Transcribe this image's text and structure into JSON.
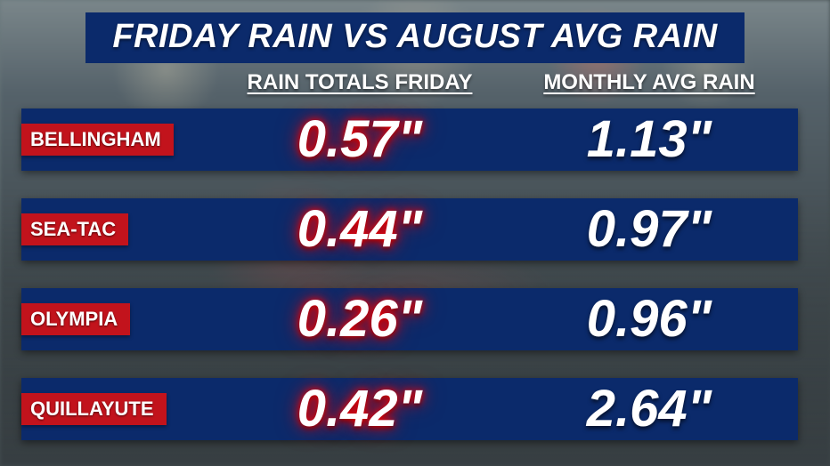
{
  "title": "FRIDAY RAIN VS AUGUST AVG RAIN",
  "title_fontsize": 38,
  "title_bg": "#0b2a6b",
  "title_color": "#ffffff",
  "columns": {
    "friday": "RAIN TOTALS FRIDAY",
    "monthly": "MONTHLY AVG RAIN"
  },
  "column_header_fontsize": 24,
  "row_bar_color": "#0b2a6b",
  "city_tag_bg": "#c2131c",
  "city_tag_color": "#ffffff",
  "city_tag_fontsize": 22,
  "friday_value_color": "#ffffff",
  "friday_value_glow": "#ff0000",
  "monthly_value_color": "#ffffff",
  "value_fontsize": 58,
  "rows": [
    {
      "city": "BELLINGHAM",
      "friday": "0.57\"",
      "monthly": "1.13\""
    },
    {
      "city": "SEA-TAC",
      "friday": "0.44\"",
      "monthly": "0.97\""
    },
    {
      "city": "OLYMPIA",
      "friday": "0.26\"",
      "monthly": "0.96\""
    },
    {
      "city": "QUILLAYUTE",
      "friday": "0.42\"",
      "monthly": "2.64\""
    }
  ],
  "background": {
    "base_gradient": [
      "#7a868a",
      "#55626a",
      "#3f484c",
      "#2f3639"
    ]
  }
}
